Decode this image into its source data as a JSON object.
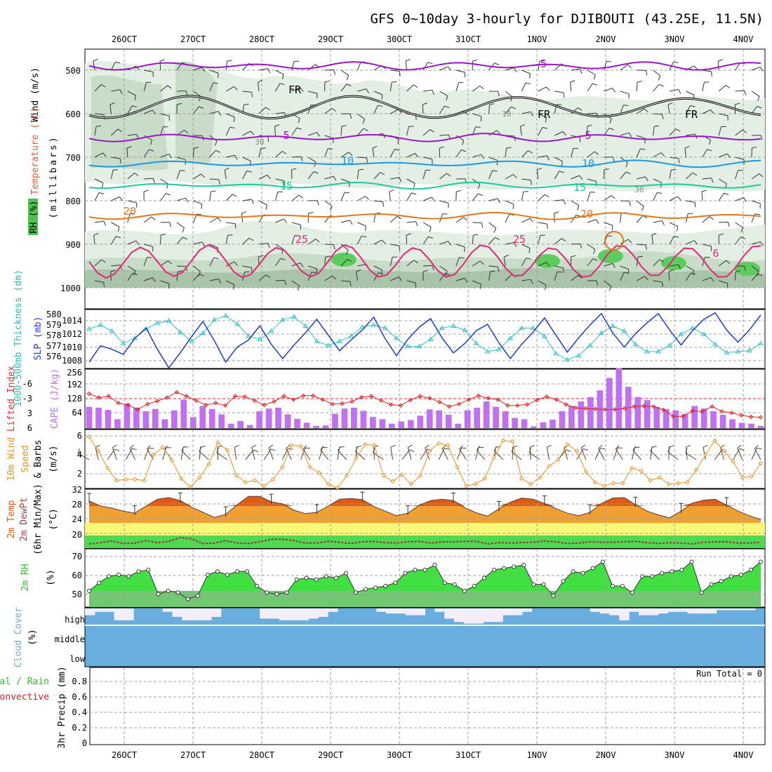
{
  "title": "GFS 0~10day 3-hourly for DJIBOUTI (43.25E, 11.5N)",
  "dates": [
    "26OCT",
    "27OCT",
    "28OCT",
    "29OCT",
    "30OCT",
    "31OCT",
    "1NOV",
    "2NOV",
    "3NOV",
    "4NOV"
  ],
  "colors": {
    "grid": "#a0a0a0",
    "rh_light": "#e3efe3",
    "rh_mid": "#c8dcc8",
    "rh_dark": "#aac4aa",
    "rh_green": "#5ccc5c",
    "freezing": "#000000",
    "t_minus5": "#9a16c8",
    "t5": "#9a16c8",
    "t10": "#1e96e6",
    "t15": "#1ec8a0",
    "t20": "#e07820",
    "t25": "#e0287a",
    "thickness": "#30c0c8",
    "slp": "#1e3cc8",
    "lifted": "#e02020",
    "cape": "#c070f0",
    "wind": "#f09020",
    "temp_fill": "#f0a030",
    "temp_dark": "#e05a10",
    "dew_band_yellow": "#f8f878",
    "dew_band_green": "#50d850",
    "rh2m": "#40e040",
    "rh2m_base": "#70c870",
    "cloud": "#6aaee0",
    "cloud_bg": "#f4eef8",
    "precip_total": "#30c030",
    "precip_conv": "#e02020"
  },
  "upper_panel": {
    "ylabel_wind": "Wind (m/s)",
    "ylabel_temp": "Temperature (°C)",
    "ylabel_rh": "RH (%)",
    "ylabel_units": "(millibars)",
    "levels": [
      "500",
      "600",
      "700",
      "800",
      "900",
      "1000"
    ],
    "contour_labels": {
      "t_minus5": "-5",
      "t5": "5",
      "t10": "10",
      "t15": "15",
      "t20": "20",
      "t25": "25",
      "freezing": "FR",
      "rh30": "30",
      "rh10": "10",
      "rh6": "6"
    },
    "isotherm_levels_mb": {
      "t_minus5": 490,
      "freezing": 585,
      "t5": 655,
      "t10": 715,
      "t15": 765,
      "t20": 835,
      "t25": 940
    }
  },
  "thickness_panel": {
    "ylabel_thick": "1000-500mb Thickness (dm)",
    "ylabel_slp": "SLP (mb)",
    "thick_ticks": [
      "580",
      "579",
      "578",
      "577",
      "576"
    ],
    "slp_ticks": [
      "1014",
      "1012",
      "1010",
      "1008"
    ],
    "chart_data": {
      "type": "line",
      "series": [
        {
          "name": "1000-500mb Thickness (dm)",
          "values": [
            578.8,
            579.2,
            578.6,
            577.4,
            577.9,
            578.8,
            579.4,
            579.6,
            578.5,
            577.6,
            578.4,
            579.7,
            580.1,
            579.3,
            578.1,
            577.8,
            578.6,
            579.7,
            580.0,
            579.1,
            577.6,
            577.2,
            577.6,
            578.1,
            579.0,
            579.2,
            578.9,
            577.9,
            577.1,
            577.1,
            577.8,
            578.9,
            579.1,
            578.7,
            577.4,
            576.6,
            576.8,
            577.9,
            578.9,
            578.9,
            578.1,
            576.4,
            575.8,
            576.2,
            577.2,
            578.4,
            579.1,
            578.6,
            577.3,
            576.6,
            576.6,
            577.2,
            578.3,
            578.9,
            578.3,
            577.3,
            576.5,
            576.6,
            576.7,
            577.4
          ]
        },
        {
          "name": "SLP (mb)",
          "values": [
            1008.2,
            1010.5,
            1010.0,
            1009.3,
            1011.5,
            1013.0,
            1010.0,
            1007.4,
            1009.5,
            1011.8,
            1013.9,
            1011.2,
            1008.2,
            1010.3,
            1011.3,
            1013.3,
            1010.7,
            1008.7,
            1010.6,
            1012.3,
            1014.2,
            1012.0,
            1009.8,
            1011.3,
            1012.7,
            1014.5,
            1011.5,
            1009.1,
            1011.4,
            1013.1,
            1014.3,
            1011.6,
            1009.5,
            1010.8,
            1012.6,
            1013.5,
            1010.9,
            1008.7,
            1010.7,
            1012.4,
            1014.4,
            1012.0,
            1009.6,
            1011.6,
            1013.4,
            1015.0,
            1012.3,
            1010.3,
            1012.2,
            1013.7,
            1015.0,
            1012.7,
            1010.6,
            1012.6,
            1014.2,
            1015.1,
            1012.7,
            1011.0,
            1012.7,
            1014.8
          ]
        }
      ]
    }
  },
  "cape_panel": {
    "ylabel_li": "Lifted Index",
    "ylabel_cape": "CAPE (J/kg)",
    "li_ticks": [
      "-6",
      "-3",
      "0",
      "3",
      "6"
    ],
    "cape_ticks": [
      "256",
      "192",
      "128",
      "64"
    ],
    "chart_data": {
      "type": "bar",
      "series": [
        {
          "name": "CAPE (J/kg)",
          "values": [
            96,
            92,
            82,
            40,
            110,
            92,
            76,
            86,
            40,
            80,
            128,
            50,
            100,
            86,
            62,
            20,
            32,
            14,
            76,
            88,
            92,
            62,
            42,
            24,
            10,
            12,
            64,
            88,
            92,
            78,
            50,
            40,
            20,
            30,
            36,
            56,
            84,
            80,
            60,
            20,
            80,
            92,
            120,
            96,
            76,
            46,
            40,
            8,
            26,
            38,
            76,
            100,
            120,
            140,
            170,
            226,
            270,
            186,
            140,
            126,
            96,
            86,
            80,
            64,
            100,
            88,
            76,
            60,
            40,
            24,
            20,
            10
          ]
        },
        {
          "name": "Lifted Index",
          "values": [
            -1.0,
            -0.2,
            -0.5,
            0.9,
            1.3,
            2.2,
            1.1,
            0.5,
            -0.2,
            -1.3,
            -0.5,
            0.4,
            1.3,
            0.9,
            1.4,
            -0.5,
            -0.4,
            0.4,
            1.3,
            0.6,
            -0.5,
            0.2,
            -0.6,
            -0.6,
            0.2,
            1.1,
            1.0,
            0.6,
            -0.3,
            -0.5,
            0.4,
            1.2,
            1.4,
            0.3,
            -0.5,
            -0.1,
            0.7,
            1.6,
            1.1,
            0.2,
            -0.6,
            -0.1,
            0.2,
            1.4,
            1.4,
            1.2,
            0.3,
            -0.4,
            0.2,
            1.2,
            1.9,
            2.0,
            2.1,
            2.2,
            2.2,
            2.0,
            1.6,
            1.5,
            1.6,
            2.3,
            3.6,
            3.6,
            2.5,
            2.6,
            1.6,
            2.6,
            2.9,
            3.4,
            3.7,
            3.8
          ]
        }
      ]
    }
  },
  "wind_panel": {
    "ylabel_a": "10m Wind",
    "ylabel_b": "Speed",
    "ylabel_c": "& Barbs",
    "ylabel_units": "(m/s)",
    "ticks": [
      "6",
      "4",
      "2"
    ],
    "chart_data": {
      "type": "line",
      "series": [
        {
          "name": "10m Wind Speed (m/s)",
          "values": [
            5.9,
            4.4,
            2.6,
            1.3,
            1.4,
            1.4,
            1.3,
            4.0,
            4.8,
            3.4,
            1.5,
            0.6,
            1.6,
            3.0,
            5.3,
            4.5,
            1.8,
            1.1,
            1.3,
            0.7,
            1.4,
            2.7,
            5.0,
            4.9,
            2.7,
            2.1,
            0.9,
            0.5,
            1.8,
            3.6,
            5.1,
            5.0,
            1.8,
            1.2,
            1.9,
            0.9,
            1.8,
            4.4,
            5.2,
            5.0,
            2.7,
            0.7,
            0.9,
            1.5,
            3.7,
            5.5,
            5.4,
            1.5,
            0.9,
            1.6,
            2.8,
            3.5,
            5.1,
            4.4,
            2.2,
            1.1,
            0.7,
            1.0,
            1.0,
            2.6,
            2.3,
            1.3,
            1.6,
            0.9,
            1.0,
            1.1,
            2.4,
            4.0,
            5.5,
            4.4,
            3.3,
            1.6,
            1.7,
            3.1
          ]
        }
      ]
    }
  },
  "temp_panel": {
    "ylabel_a": "2m Temp",
    "ylabel_b": "2m DewPt",
    "ylabel_c": "(6hr Min/Max)",
    "ylabel_units": "(°C)",
    "ticks": [
      "32",
      "28",
      "24",
      "20"
    ],
    "chart_data": {
      "type": "area",
      "series": [
        {
          "name": "2m Temp (°C)",
          "values": [
            29.2,
            28.0,
            27.5,
            26.8,
            26.3,
            28.0,
            29.6,
            30.0,
            29.3,
            27.7,
            26.5,
            25.3,
            26.0,
            28.3,
            30.3,
            30.3,
            29.0,
            28.5,
            27.0,
            26.2,
            26.5,
            28.0,
            29.6,
            29.8,
            29.5,
            27.9,
            26.8,
            25.7,
            26.3,
            28.2,
            29.3,
            29.6,
            29.3,
            27.6,
            26.4,
            25.6,
            27.3,
            28.9,
            29.9,
            29.6,
            28.6,
            27.4,
            26.3,
            25.7,
            26.5,
            28.6,
            29.9,
            30.0,
            28.3,
            26.8,
            25.9,
            25.2,
            26.8,
            28.7,
            29.4,
            29.6,
            28.2,
            26.8,
            25.7,
            24.8
          ]
        },
        {
          "name": "2m DewPt (°C)",
          "values": [
            19.0,
            19.3,
            19.7,
            19.1,
            19.2,
            19.8,
            19.3,
            19.6,
            20.5,
            20.2,
            19.1,
            19.2,
            19.8,
            19.2,
            19.1,
            19.5,
            20.1,
            20.1,
            19.8,
            19.2,
            19.2,
            19.6,
            19.4,
            19.1,
            19.5,
            19.6,
            19.3,
            19.2,
            19.5,
            19.6,
            19.2,
            19.5,
            19.5,
            19.6,
            19.6,
            19.0,
            19.3,
            19.2,
            19.3,
            19.4,
            19.7,
            19.5,
            19.1,
            19.2,
            19.5,
            19.4,
            19.4,
            19.5,
            19.6,
            19.3,
            19.1,
            19.3,
            19.2,
            19.0,
            19.4,
            19.5,
            19.5,
            19.2,
            19.2,
            19.4
          ]
        }
      ]
    }
  },
  "rh_panel": {
    "ylabel": "2m RH",
    "ylabel_units": "(%)",
    "ticks": [
      "70",
      "60",
      "50"
    ],
    "chart_data": {
      "type": "area",
      "series": [
        {
          "name": "2m RH (%)",
          "values": [
            50,
            55,
            59,
            60,
            59,
            62,
            63,
            48,
            50,
            49,
            45,
            47,
            60,
            62,
            60,
            62,
            62,
            53,
            49,
            48,
            49,
            57,
            58,
            57,
            59,
            58,
            61,
            49,
            51,
            52,
            53,
            55,
            61,
            63,
            63,
            66,
            55,
            54,
            50,
            53,
            58,
            63,
            64,
            65,
            66,
            54,
            54,
            47,
            56,
            62,
            61,
            64,
            68,
            53,
            53,
            49,
            59,
            59,
            61,
            62,
            63,
            68,
            49,
            54,
            56,
            59,
            60,
            63,
            68
          ]
        }
      ]
    }
  },
  "cloud_panel": {
    "ylabel": "Cloud Cover",
    "ylabel_units": "(%)",
    "levels": [
      "high",
      "middle",
      "low"
    ],
    "chart_data": {
      "type": "area",
      "series": [
        {
          "name": "High cloud (%)",
          "values": [
            60,
            80,
            80,
            30,
            30,
            100,
            100,
            100,
            80,
            50,
            30,
            30,
            30,
            50,
            100,
            100,
            100,
            100,
            40,
            40,
            30,
            30,
            30,
            40,
            50,
            80,
            100,
            100,
            100,
            100,
            80,
            70,
            70,
            60,
            60,
            100,
            80,
            40,
            20,
            10,
            10,
            20,
            20,
            60,
            60,
            80,
            100,
            100,
            100,
            100,
            100,
            100,
            80,
            70,
            60,
            30,
            80,
            60,
            60,
            70,
            80,
            80,
            70,
            70,
            70,
            90,
            90,
            90,
            90,
            100
          ]
        }
      ]
    }
  },
  "precip_panel": {
    "ylabel_a": "Total / Rain",
    "ylabel_b": "Convective",
    "ylabel_c": "3hr Precip (mm)",
    "ticks": [
      "0.8",
      "0.6",
      "0.4",
      "0.2",
      "0"
    ],
    "run_total": "Run Total = 0",
    "chart_data": {
      "type": "bar",
      "ylim": [
        0,
        0.9
      ],
      "series": [
        {
          "name": "Total / Rain (mm)",
          "values": [
            0,
            0,
            0,
            0,
            0,
            0,
            0,
            0,
            0,
            0
          ]
        },
        {
          "name": "Convective (mm)",
          "values": [
            0,
            0,
            0,
            0,
            0,
            0,
            0,
            0,
            0,
            0
          ]
        }
      ]
    }
  }
}
